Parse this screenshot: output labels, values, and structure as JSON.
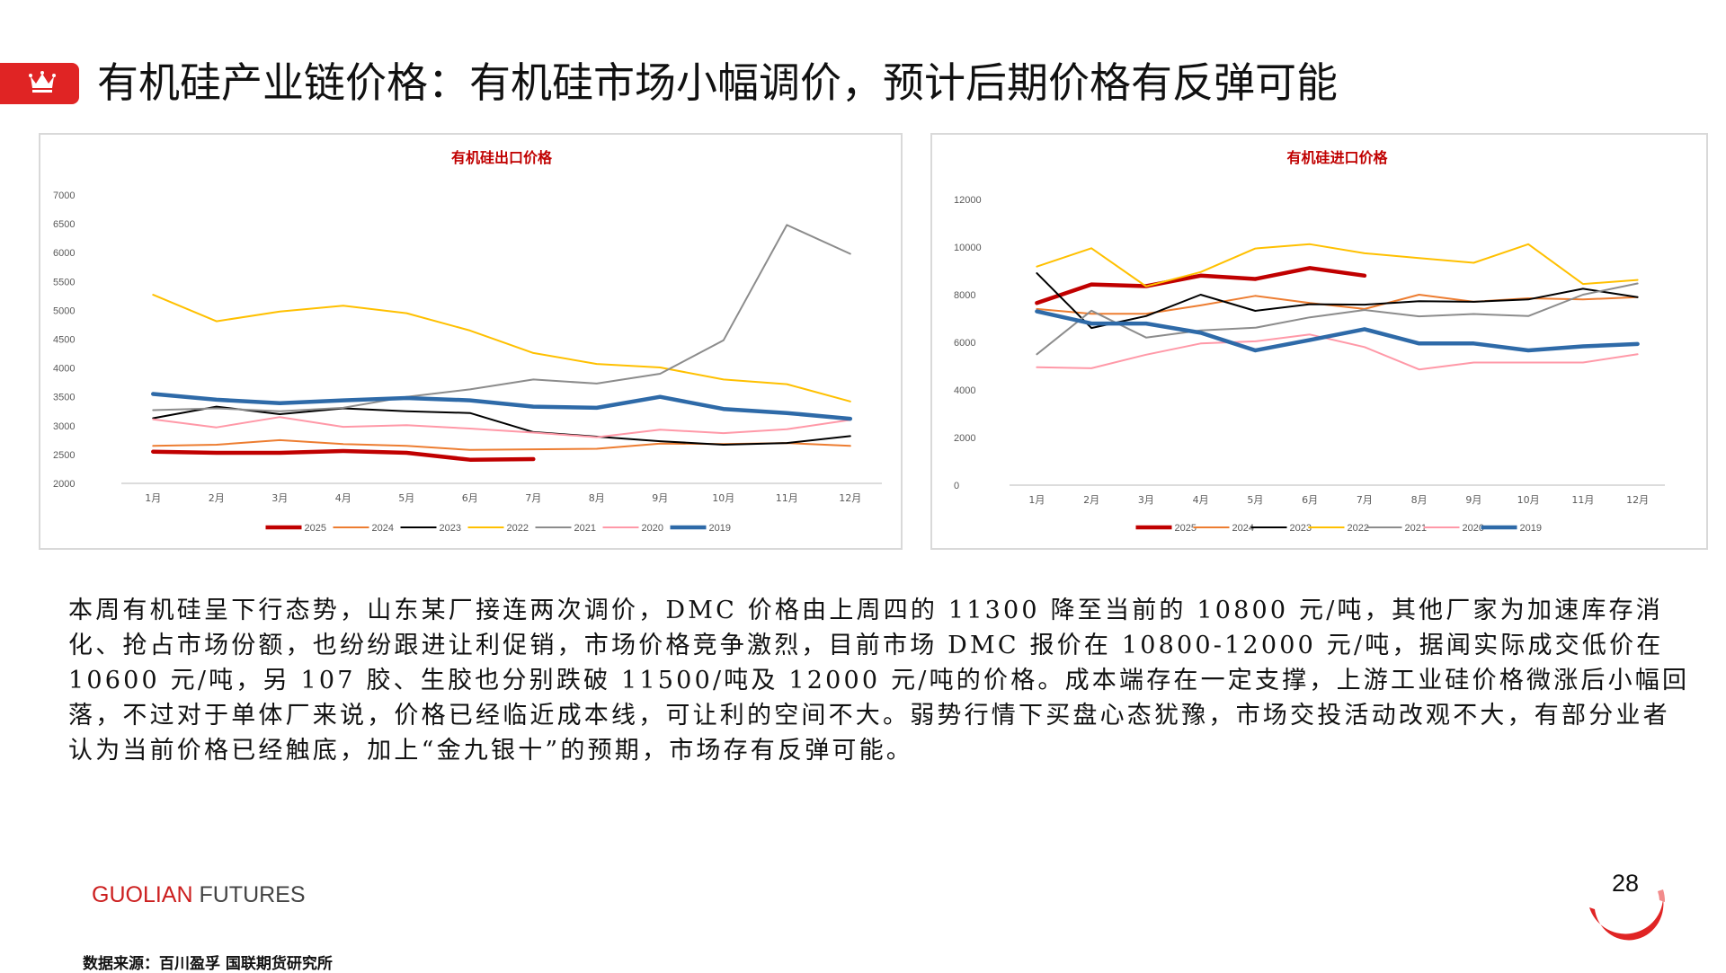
{
  "header": {
    "title": "有机硅产业链价格：有机硅市场小幅调价，预计后期价格有反弹可能",
    "icon": "crown-icon",
    "accent": "#e02424"
  },
  "chart_data": [
    {
      "type": "line",
      "title": "有机硅出口价格",
      "categories": [
        "1月",
        "2月",
        "3月",
        "4月",
        "5月",
        "6月",
        "7月",
        "8月",
        "9月",
        "10月",
        "11月",
        "12月"
      ],
      "ylim": [
        2000,
        7000
      ],
      "yticks": [
        "2000",
        "2500",
        "3000",
        "3500",
        "4000",
        "4500",
        "5000",
        "5500",
        "6000",
        "6500",
        "7000"
      ],
      "legend_position": "bottom",
      "series": [
        {
          "name": "2025",
          "color": "#c00000",
          "thick": true,
          "values": [
            2550,
            2530,
            2530,
            2560,
            2530,
            2410,
            2420,
            null,
            null,
            null,
            null,
            null
          ]
        },
        {
          "name": "2024",
          "color": "#ed7d31",
          "thick": false,
          "values": [
            2650,
            2670,
            2750,
            2680,
            2650,
            2580,
            2590,
            2600,
            2690,
            2680,
            2700,
            2650
          ]
        },
        {
          "name": "2023",
          "color": "#000000",
          "thick": false,
          "values": [
            3130,
            3330,
            3200,
            3300,
            3250,
            3220,
            2890,
            2810,
            2730,
            2670,
            2700,
            2820
          ]
        },
        {
          "name": "2022",
          "color": "#ffc000",
          "thick": false,
          "values": [
            5270,
            4810,
            4980,
            5080,
            4950,
            4650,
            4260,
            4070,
            4010,
            3800,
            3720,
            3420
          ]
        },
        {
          "name": "2021",
          "color": "#8c8c8c",
          "thick": false,
          "values": [
            3270,
            3300,
            3250,
            3310,
            3500,
            3630,
            3800,
            3730,
            3900,
            4480,
            6480,
            5980
          ]
        },
        {
          "name": "2020",
          "color": "#ff99a8",
          "thick": false,
          "values": [
            3110,
            2970,
            3150,
            2980,
            3010,
            2950,
            2880,
            2800,
            2930,
            2870,
            2940,
            3100
          ]
        },
        {
          "name": "2019",
          "color": "#2e6aa8",
          "thick": true,
          "values": [
            3550,
            3450,
            3390,
            3440,
            3480,
            3440,
            3330,
            3310,
            3500,
            3290,
            3220,
            3120
          ]
        }
      ]
    },
    {
      "type": "line",
      "title": "有机硅进口价格",
      "categories": [
        "1月",
        "2月",
        "3月",
        "4月",
        "5月",
        "6月",
        "7月",
        "8月",
        "9月",
        "10月",
        "11月",
        "12月"
      ],
      "ylim": [
        0,
        12000
      ],
      "yticks": [
        "0",
        "2000",
        "4000",
        "6000",
        "8000",
        "10000",
        "12000"
      ],
      "legend_position": "bottom",
      "series": [
        {
          "name": "2025",
          "color": "#c00000",
          "thick": true,
          "values": [
            7650,
            8430,
            8360,
            8800,
            8660,
            9120,
            8800,
            null,
            null,
            null,
            null,
            null
          ]
        },
        {
          "name": "2024",
          "color": "#ed7d31",
          "thick": false,
          "values": [
            7400,
            7200,
            7200,
            7550,
            7950,
            7650,
            7400,
            8000,
            7700,
            7850,
            7800,
            7900
          ]
        },
        {
          "name": "2023",
          "color": "#000000",
          "thick": false,
          "values": [
            8900,
            6600,
            7100,
            8000,
            7320,
            7600,
            7580,
            7730,
            7700,
            7800,
            8250,
            7900
          ]
        },
        {
          "name": "2022",
          "color": "#ffc000",
          "thick": false,
          "values": [
            9180,
            9950,
            8350,
            8950,
            9940,
            10120,
            9740,
            9540,
            9340,
            10120,
            8450,
            8620
          ]
        },
        {
          "name": "2021",
          "color": "#8c8c8c",
          "thick": false,
          "values": [
            5500,
            7330,
            6200,
            6500,
            6610,
            7050,
            7360,
            7090,
            7190,
            7100,
            8000,
            8470
          ]
        },
        {
          "name": "2020",
          "color": "#ff99a8",
          "thick": false,
          "values": [
            4950,
            4910,
            5480,
            5950,
            6040,
            6330,
            5800,
            4860,
            5150,
            5150,
            5150,
            5500
          ]
        },
        {
          "name": "2019",
          "color": "#2e6aa8",
          "thick": true,
          "values": [
            7300,
            6790,
            6790,
            6400,
            5660,
            6100,
            6550,
            5950,
            5950,
            5660,
            5830,
            5930
          ]
        }
      ]
    }
  ],
  "body": {
    "paragraph": "本周有机硅呈下行态势，山东某厂接连两次调价，DMC 价格由上周四的 11300 降至当前的 10800 元/吨，其他厂家为加速库存消化、抢占市场份额，也纷纷跟进让利促销，市场价格竞争激烈，目前市场 DMC 报价在 10800-12000 元/吨，据闻实际成交低价在 10600 元/吨，另 107 胶、生胶也分别跌破 11500/吨及 12000 元/吨的价格。成本端存在一定支撑，上游工业硅价格微涨后小幅回落，不过对于单体厂来说，价格已经临近成本线，可让利的空间不大。弱势行情下买盘心态犹豫，市场交投活动改观不大，有部分业者认为当前价格已经触底，加上“金九银十”的预期，市场存有反弹可能。"
  },
  "footer": {
    "brand_part1": "GUOLIAN",
    "brand_part2": " FUTURES",
    "page_number": "28",
    "source": "数据来源：百川盈孚  国联期货研究所"
  }
}
